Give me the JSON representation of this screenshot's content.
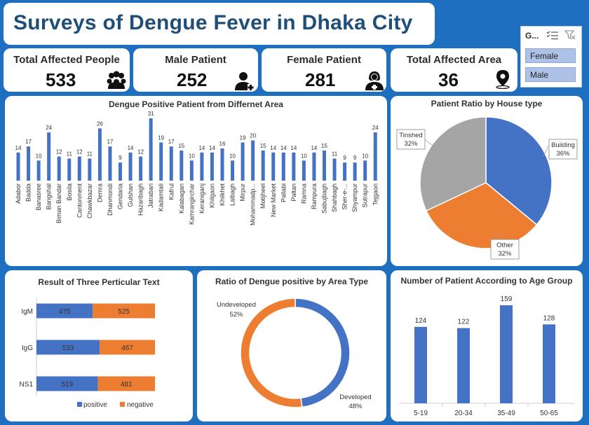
{
  "title": "Surveys of Dengue Fever in Dhaka City",
  "kpis": [
    {
      "label": "Total Affected People",
      "value": "533",
      "icon": "people-group-icon"
    },
    {
      "label": "Male Patient",
      "value": "252",
      "icon": "male-patient-icon"
    },
    {
      "label": "Female Patient",
      "value": "281",
      "icon": "female-patient-icon"
    },
    {
      "label": "Total Affected Area",
      "value": "36",
      "icon": "map-pin-icon"
    }
  ],
  "slicer": {
    "title": "G...",
    "options": [
      "Female",
      "Male"
    ]
  },
  "colors": {
    "blue": "#4472c4",
    "orange": "#ed7d31",
    "gray": "#a5a5a5",
    "title": "#1f4e79",
    "background": "#1f6fc0"
  },
  "chart_data": [
    {
      "type": "bar",
      "title": "Dengue Positive Patient from Differnet Area",
      "categories": [
        "Adabor",
        "Badda",
        "Banasree",
        "Bangshal",
        "Biman Bandar",
        "Bosila",
        "Cantonment",
        "Chawkbazar",
        "Demra",
        "Dhanmondi",
        "Gendaria",
        "Gulshan",
        "Hazaribagh",
        "Jatrabari",
        "Kadamtali",
        "Kafrul",
        "Kalabagan",
        "Kamrangirchar",
        "Keraniganj",
        "Khilgaon",
        "Khilkhet",
        "Lalbagh",
        "Mirpur",
        "Mohammadp...",
        "Motijheel",
        "New Market",
        "Pallabi",
        "Paltan",
        "Ramna",
        "Rampura",
        "Sabujbagh",
        "Shahbagh",
        "Sher-e-...",
        "Shyampur",
        "Sutrapur",
        "Tejgaon"
      ],
      "values": [
        14,
        17,
        10,
        24,
        12,
        11,
        12,
        11,
        26,
        17,
        9,
        14,
        12,
        31,
        19,
        17,
        15,
        10,
        14,
        14,
        16,
        10,
        19,
        20,
        15,
        14,
        14,
        14,
        10,
        14,
        15,
        11,
        9,
        9,
        10,
        24
      ],
      "data_labels": true
    },
    {
      "type": "pie",
      "title": "Patient Ratio by House type",
      "labels": [
        "Building",
        "Other",
        "Tinshed"
      ],
      "values": [
        36,
        32,
        32
      ],
      "display": [
        "36%",
        "32%",
        "32%"
      ]
    },
    {
      "type": "bar",
      "orientation": "horizontal",
      "stacked": true,
      "title": "Result of Three Perticular Text",
      "categories": [
        "IgM",
        "IgG",
        "NS1"
      ],
      "series": [
        {
          "name": "positive",
          "values": [
            475,
            533,
            519
          ]
        },
        {
          "name": "negative",
          "values": [
            525,
            467,
            481
          ]
        }
      ],
      "legend": "bottom"
    },
    {
      "type": "pie",
      "donut": true,
      "title": "Ratio of Dengue positive by Area Type",
      "labels": [
        "Developed",
        "Undeveloped"
      ],
      "values": [
        48,
        52
      ],
      "display": [
        "48%",
        "52%"
      ]
    },
    {
      "type": "bar",
      "title": "Number of Patient According to Age Group",
      "categories": [
        "5-19",
        "20-34",
        "35-49",
        "50-65"
      ],
      "values": [
        124,
        122,
        159,
        128
      ],
      "data_labels": true
    }
  ]
}
